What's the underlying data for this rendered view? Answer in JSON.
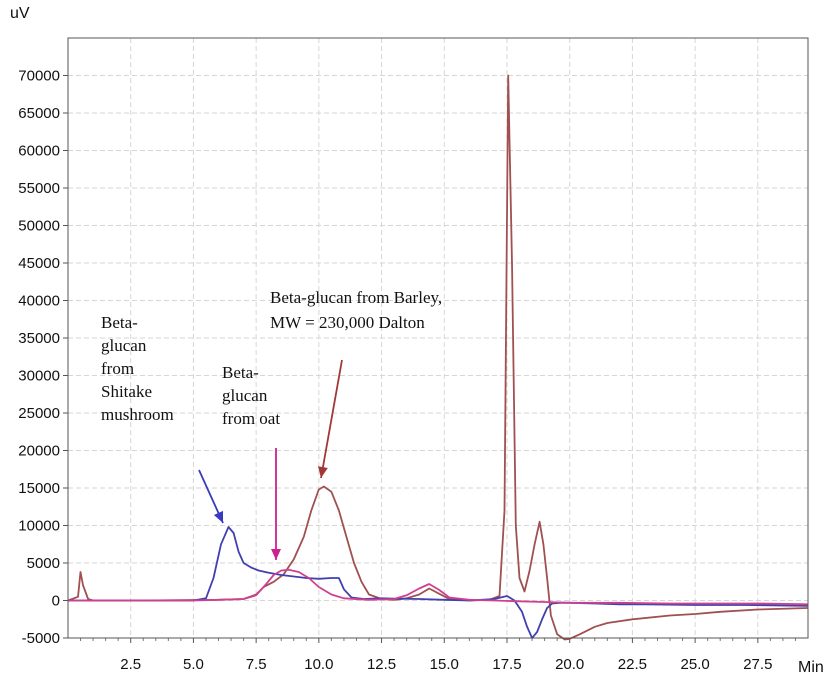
{
  "chart_data": {
    "type": "line",
    "ylabel": "uV",
    "xlabel": "Min",
    "xlim": [
      0,
      29.5
    ],
    "ylim": [
      -5000,
      75000
    ],
    "x_ticks": [
      2.5,
      5.0,
      7.5,
      10.0,
      12.5,
      15.0,
      17.5,
      20.0,
      22.5,
      25.0,
      27.5
    ],
    "x_tick_labels": [
      "2.5",
      "5.0",
      "7.5",
      "10.0",
      "12.5",
      "15.0",
      "17.5",
      "20.0",
      "22.5",
      "25.0",
      "27.5"
    ],
    "y_ticks": [
      -5000,
      0,
      5000,
      10000,
      15000,
      20000,
      25000,
      30000,
      35000,
      40000,
      45000,
      50000,
      55000,
      60000,
      65000,
      70000
    ],
    "y_tick_labels": [
      "-5000",
      "0",
      "5000",
      "10000",
      "15000",
      "20000",
      "25000",
      "30000",
      "35000",
      "40000",
      "45000",
      "50000",
      "55000",
      "60000",
      "65000",
      "70000"
    ],
    "grid": true,
    "series": [
      {
        "color": "#a05050",
        "x": [
          0,
          0.4,
          0.5,
          0.6,
          0.8,
          1.0,
          3.0,
          6.0,
          7.0,
          7.5,
          7.8,
          8.2,
          8.6,
          9.0,
          9.4,
          9.7,
          10.0,
          10.2,
          10.5,
          10.8,
          11.1,
          11.4,
          11.7,
          12.0,
          12.5,
          13.0,
          13.5,
          14.0,
          14.4,
          14.8,
          15.2,
          16.0,
          16.8,
          17.2,
          17.4,
          17.55,
          17.7,
          17.85,
          18.0,
          18.2,
          18.4,
          18.6,
          18.8,
          18.95,
          19.1,
          19.25,
          19.5,
          19.8,
          20.0,
          20.4,
          21.0,
          21.5,
          22.5,
          24.0,
          25.0,
          26.0,
          27.5,
          29.5
        ],
        "y": [
          0,
          500,
          3800,
          2000,
          200,
          0,
          0,
          100,
          200,
          800,
          1800,
          2500,
          3500,
          5500,
          8500,
          12000,
          14800,
          15200,
          14500,
          12000,
          8500,
          5000,
          2500,
          800,
          200,
          100,
          300,
          800,
          1600,
          900,
          200,
          0,
          100,
          600,
          12000,
          70000,
          45000,
          10000,
          3000,
          1200,
          4000,
          7500,
          10500,
          7500,
          3000,
          -2000,
          -4500,
          -5200,
          -5100,
          -4500,
          -3500,
          -3000,
          -2500,
          -2000,
          -1800,
          -1500,
          -1200,
          -1000
        ]
      },
      {
        "color": "#4040b0",
        "x": [
          0,
          3.0,
          5.0,
          5.5,
          5.8,
          6.1,
          6.4,
          6.6,
          6.8,
          7.0,
          7.3,
          7.6,
          8.0,
          8.5,
          9.0,
          9.5,
          10.0,
          10.5,
          10.8,
          11.0,
          11.3,
          11.8,
          12.5,
          13.0,
          14.0,
          15.0,
          16.0,
          17.0,
          17.5,
          17.8,
          18.1,
          18.3,
          18.5,
          18.7,
          18.9,
          19.1,
          19.3,
          19.6,
          20.0,
          21.0,
          22.0,
          23.0,
          25.0,
          27.0,
          29.5
        ],
        "y": [
          0,
          0,
          0,
          300,
          3000,
          7500,
          9800,
          9000,
          6500,
          5000,
          4400,
          4000,
          3700,
          3400,
          3200,
          3000,
          2900,
          3000,
          3000,
          1500,
          400,
          200,
          300,
          250,
          200,
          100,
          0,
          200,
          600,
          0,
          -1500,
          -3500,
          -5000,
          -4200,
          -2500,
          -1000,
          -400,
          -300,
          -300,
          -400,
          -500,
          -500,
          -600,
          -600,
          -700
        ]
      },
      {
        "color": "#d04090",
        "x": [
          0,
          5.0,
          6.0,
          7.0,
          7.5,
          7.9,
          8.2,
          8.5,
          8.8,
          9.2,
          9.6,
          10.0,
          10.5,
          11.0,
          12.0,
          13.0,
          13.5,
          14.0,
          14.4,
          14.8,
          15.2,
          16.0,
          17.0,
          18.0,
          19.0,
          20.0,
          22.0,
          24.0,
          26.0,
          27.5,
          29.5
        ],
        "y": [
          0,
          0,
          100,
          200,
          700,
          2200,
          3400,
          4000,
          4100,
          3800,
          3000,
          1800,
          800,
          300,
          100,
          200,
          700,
          1600,
          2200,
          1400,
          400,
          100,
          0,
          -100,
          -200,
          -300,
          -300,
          -400,
          -400,
          -400,
          -500
        ]
      }
    ],
    "annotations": [
      {
        "lines": [
          "Beta-",
          "glucan",
          "from",
          "Shitake",
          "mushroom"
        ],
        "color": "#3a3ac0"
      },
      {
        "lines": [
          "Beta-",
          "glucan",
          "from oat"
        ],
        "color": "#d02090"
      },
      {
        "lines": [
          "Beta-glucan from Barley,",
          "MW = 230,000 Dalton"
        ],
        "color": "#a03838"
      }
    ]
  }
}
